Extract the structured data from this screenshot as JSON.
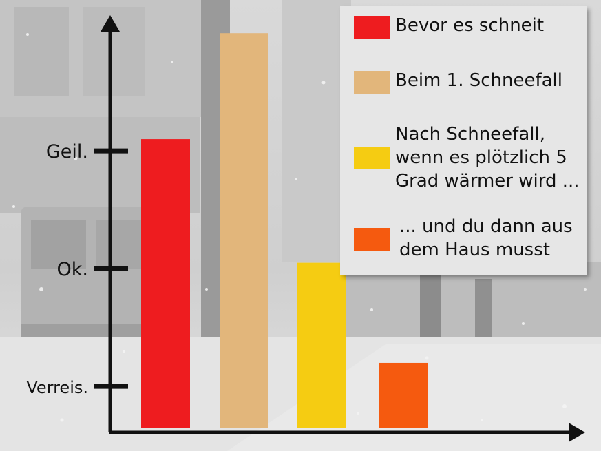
{
  "chart_data": {
    "type": "bar",
    "categories": [
      "Bevor es schneit",
      "Beim 1. Schneefall",
      "Nach Schneefall, wenn es plötzlich 5 Grad wärmer wird ...",
      "... und du dann aus dem Haus musst"
    ],
    "values": [
      2.1,
      3.0,
      1.05,
      0.2
    ],
    "colors": [
      "#ee1c1f",
      "#e2b67b",
      "#f5cc12",
      "#f55a0f"
    ],
    "yticks": [
      {
        "value": 0,
        "label": "Verreis."
      },
      {
        "value": 1,
        "label": "Ok."
      },
      {
        "value": 2,
        "label": "Geil."
      }
    ],
    "ylim": [
      -0.35,
      3.2
    ],
    "title": "",
    "xlabel": "",
    "ylabel": "",
    "legend_position": "top-right",
    "grid": false
  },
  "legend": {
    "items": [
      {
        "label": "Bevor es schneit",
        "color": "#ee1c1f"
      },
      {
        "label": "Beim 1. Schneefall",
        "color": "#e2b67b"
      },
      {
        "label": "Nach Schneefall,\nwenn es plötzlich 5\nGrad wärmer wird ...",
        "color": "#f5cc12"
      },
      {
        "label": "... und du dann aus\ndem Haus musst",
        "color": "#f55a0f"
      }
    ]
  },
  "background": {
    "description_color": "#d8d8d8"
  }
}
